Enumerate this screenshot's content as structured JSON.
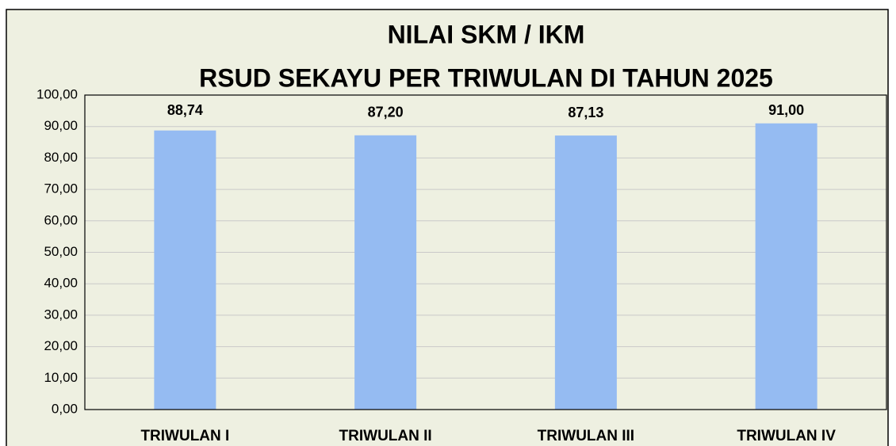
{
  "chart_data": {
    "type": "bar",
    "title": [
      "NILAI SKM / IKM",
      "RSUD SEKAYU PER TRIWULAN DI TAHUN 2025"
    ],
    "categories": [
      "TRIWULAN I",
      "TRIWULAN II",
      "TRIWULAN III",
      "TRIWULAN IV"
    ],
    "values": [
      88.74,
      87.2,
      87.13,
      91
    ],
    "value_labels": [
      "88,74",
      "87,20",
      "87,13",
      "91,00"
    ],
    "color": "#95bbf2",
    "ylim": [
      0,
      100
    ],
    "yticks": [
      {
        "value": 0,
        "label": "0,00"
      },
      {
        "value": 10,
        "label": "10,00"
      },
      {
        "value": 20,
        "label": "20,00"
      },
      {
        "value": 30,
        "label": "30,00"
      },
      {
        "value": 40,
        "label": "40,00"
      },
      {
        "value": 50,
        "label": "50,00"
      },
      {
        "value": 60,
        "label": "60,00"
      },
      {
        "value": 70,
        "label": "70,00"
      },
      {
        "value": 80,
        "label": "80,00"
      },
      {
        "value": 90,
        "label": "90,00"
      },
      {
        "value": 100,
        "label": "100,00"
      }
    ],
    "grid": true
  }
}
